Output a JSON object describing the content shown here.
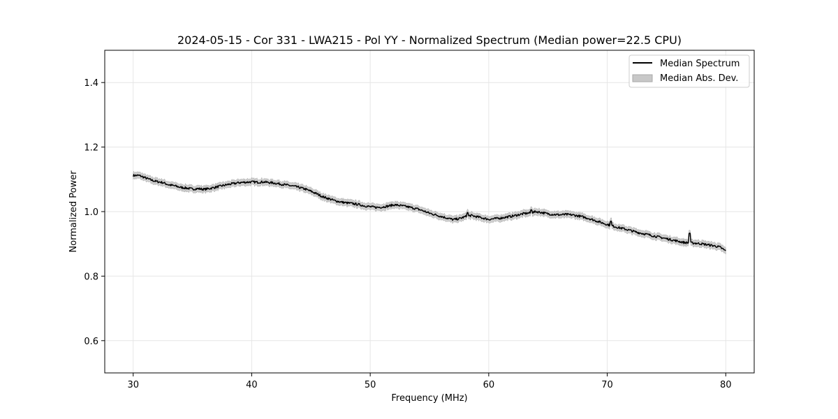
{
  "chart_data": {
    "type": "line",
    "title": "2024-05-15 - Cor 331 - LWA215 - Pol YY - Normalized Spectrum (Median power=22.5 CPU)",
    "xlabel": "Frequency (MHz)",
    "ylabel": "Normalized Power",
    "xlim": [
      27.6,
      82.4
    ],
    "ylim": [
      0.5,
      1.5
    ],
    "xticks": [
      30,
      40,
      50,
      60,
      70,
      80
    ],
    "yticks": [
      0.6,
      0.8,
      1.0,
      1.2,
      1.4
    ],
    "xtick_labels": [
      "30",
      "40",
      "50",
      "60",
      "70",
      "80"
    ],
    "ytick_labels": [
      "0.6",
      "0.8",
      "1.0",
      "1.2",
      "1.4"
    ],
    "grid": true,
    "legend_position": "top-right",
    "colors": {
      "median_line": "#000000",
      "mad_fill": "#c8c8c8",
      "mad_edge": "#a8a8a8",
      "grid": "#e6e6e6"
    },
    "series": [
      {
        "name": "Median Spectrum",
        "kind": "line",
        "x": [
          30,
          30.5,
          31,
          31.5,
          32,
          32.5,
          33,
          33.5,
          34,
          34.5,
          35,
          35.5,
          36,
          36.5,
          37,
          37.5,
          38,
          38.5,
          39,
          39.5,
          40,
          40.5,
          41,
          41.5,
          42,
          42.5,
          43,
          43.5,
          44,
          44.5,
          45,
          45.5,
          46,
          46.5,
          47,
          47.5,
          48,
          48.5,
          49,
          49.5,
          50,
          50.5,
          51,
          51.5,
          52,
          52.5,
          53,
          53.5,
          54,
          54.5,
          55,
          55.5,
          56,
          56.5,
          57,
          57.5,
          58,
          58.5,
          59,
          59.5,
          60,
          60.5,
          61,
          61.5,
          62,
          62.5,
          63,
          63.5,
          64,
          64.5,
          65,
          65.5,
          66,
          66.5,
          67,
          67.5,
          68,
          68.5,
          69,
          69.5,
          70,
          70.5,
          71,
          71.5,
          72,
          72.5,
          73,
          73.5,
          74,
          74.5,
          75,
          75.5,
          76,
          76.5,
          77,
          77.5,
          78,
          78.5,
          79,
          79.5,
          80
        ],
        "y": [
          1.112,
          1.112,
          1.105,
          1.098,
          1.093,
          1.09,
          1.083,
          1.08,
          1.075,
          1.073,
          1.07,
          1.071,
          1.069,
          1.072,
          1.076,
          1.08,
          1.084,
          1.087,
          1.09,
          1.091,
          1.092,
          1.091,
          1.092,
          1.09,
          1.088,
          1.085,
          1.082,
          1.079,
          1.075,
          1.07,
          1.063,
          1.055,
          1.046,
          1.04,
          1.034,
          1.03,
          1.027,
          1.025,
          1.022,
          1.018,
          1.015,
          1.013,
          1.014,
          1.017,
          1.021,
          1.019,
          1.016,
          1.012,
          1.008,
          1.002,
          0.995,
          0.99,
          0.985,
          0.98,
          0.975,
          0.978,
          0.984,
          0.988,
          0.984,
          0.98,
          0.976,
          0.978,
          0.98,
          0.983,
          0.986,
          0.99,
          0.994,
          0.996,
          1.0,
          0.997,
          0.993,
          0.991,
          0.99,
          0.991,
          0.99,
          0.987,
          0.983,
          0.978,
          0.972,
          0.966,
          0.96,
          0.955,
          0.95,
          0.946,
          0.941,
          0.936,
          0.932,
          0.928,
          0.924,
          0.92,
          0.916,
          0.912,
          0.908,
          0.904,
          0.903,
          0.902,
          0.9,
          0.897,
          0.894,
          0.89,
          0.878
        ]
      },
      {
        "name": "Median Abs. Dev.",
        "kind": "band",
        "half_width": 0.009
      }
    ]
  }
}
